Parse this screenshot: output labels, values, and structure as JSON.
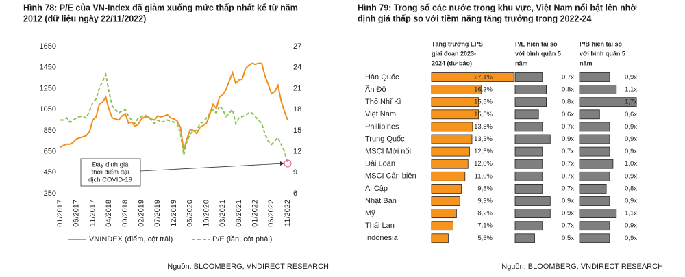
{
  "chart_data": [
    {
      "type": "line",
      "title": [
        "Hình 78: P/E của VN-Index đã giảm xuống mức thấp nhất kể từ năm",
        "2012 (dữ liệu ngày 22/11/2022)"
      ],
      "x": [
        "01/2017",
        null,
        null,
        null,
        null,
        "06/2017",
        null,
        null,
        null,
        null,
        "11/2017",
        null,
        null,
        null,
        null,
        "04/2018",
        null,
        null,
        null,
        null,
        "09/2018",
        null,
        null,
        null,
        null,
        "02/2019",
        null,
        null,
        null,
        null,
        "07/2019",
        null,
        null,
        null,
        null,
        "12/2019",
        null,
        null,
        null,
        null,
        "05/2020",
        null,
        null,
        null,
        null,
        "10/2020",
        null,
        null,
        null,
        null,
        "03/2021",
        null,
        null,
        null,
        null,
        "08/2021",
        null,
        null,
        null,
        null,
        "01/2022",
        null,
        null,
        null,
        null,
        "06/2022",
        null,
        null,
        null,
        null,
        "11/2022"
      ],
      "series": [
        {
          "name": "VNINDEX (điểm, cột trái)",
          "color": "#f28e1c",
          "axis": "y",
          "dashed": false,
          "values": [
            690,
            710,
            720,
            720,
            740,
            770,
            780,
            790,
            800,
            840,
            950,
            980,
            1100,
            1120,
            1170,
            1050,
            970,
            960,
            950,
            990,
            1010,
            920,
            930,
            890,
            910,
            960,
            980,
            980,
            960,
            950,
            990,
            980,
            990,
            1000,
            970,
            960,
            940,
            880,
            660,
            770,
            860,
            850,
            820,
            880,
            900,
            920,
            1000,
            1100,
            1060,
            1170,
            1190,
            1240,
            1320,
            1400,
            1300,
            1330,
            1340,
            1440,
            1470,
            1490,
            1480,
            1490,
            1490,
            1370,
            1290,
            1200,
            1220,
            1280,
            1130,
            1030,
            950
          ]
        },
        {
          "name": "P/E (lần, cột phải)",
          "color": "#8cc152",
          "axis": "y2",
          "dashed": true,
          "values": [
            16.5,
            16.5,
            16.8,
            16.2,
            16.5,
            16.8,
            17.0,
            17.0,
            16.8,
            17.8,
            19.0,
            19.5,
            21,
            22,
            23,
            20.5,
            18.5,
            18,
            17.5,
            17.8,
            18,
            17,
            16.5,
            16,
            16.8,
            17,
            17.2,
            17,
            16.5,
            16,
            16.5,
            16.2,
            16.3,
            16.5,
            16.3,
            16.2,
            16,
            14.5,
            11.5,
            13.5,
            14.5,
            15,
            15,
            16,
            16.2,
            16.8,
            17.5,
            18,
            17.5,
            18.5,
            18,
            17,
            17.5,
            18,
            16,
            16.8,
            17,
            17.2,
            17.5,
            17.5,
            17,
            16.5,
            16,
            14.5,
            13.5,
            13,
            13.5,
            14,
            13,
            12,
            10.3
          ]
        }
      ],
      "ylim": [
        250,
        1650
      ],
      "yticks": [
        250,
        450,
        650,
        850,
        1050,
        1250,
        1450,
        1650
      ],
      "y2lim": [
        6,
        27
      ],
      "y2ticks": [
        6,
        9,
        12,
        15,
        18,
        21,
        24,
        27
      ],
      "annotation": [
        "Đáy định giá",
        "thời điểm đại",
        "dịch COVID-19"
      ],
      "source": "Nguồn: BLOOMBERG, VNDIRECT RESEARCH"
    },
    {
      "type": "bar",
      "title": [
        "Hình 79: Trong số các nước trong khu vực, Việt Nam nổi bật lên nhờ",
        "định giá thấp so với tiềm năng tăng trưởng trong 2022-24"
      ],
      "categories": [
        "Hàn Quốc",
        "Ấn Độ",
        "Thổ Nhĩ Kì",
        "Việt Nam",
        "Phillipines",
        "Trung Quốc",
        "MSCI Mới nổi",
        "Đài Loan",
        "MSCI Cận biên",
        "Ai Cập",
        "Nhật Bản",
        "Mỹ",
        "Thái Lan",
        "Indonesia"
      ],
      "series": [
        {
          "header": [
            "Tăng trưởng EPS",
            "giai đoạn 2023-",
            "2024 (dự báo)"
          ],
          "color": "#f7941d",
          "xlim": [
            0,
            27.5
          ],
          "values": [
            27.1,
            16.3,
            15.5,
            15.5,
            13.5,
            13.3,
            12.5,
            12.0,
            11.0,
            9.8,
            9.3,
            8.2,
            7.1,
            5.5
          ],
          "value_labels": [
            "27,1%",
            "16,3%",
            "15,5%",
            "15,5%",
            "13,5%",
            "13,3%",
            "12,5%",
            "12,0%",
            "11,0%",
            "9,8%",
            "9,3%",
            "8,2%",
            "7,1%",
            "5,5%"
          ]
        },
        {
          "header": [
            "P/E hiện tại so",
            "với bình quân 5",
            "năm"
          ],
          "color": "#7f7f7f",
          "xlim": [
            0,
            1
          ],
          "values": [
            0.7,
            0.8,
            0.8,
            0.6,
            0.7,
            0.9,
            0.7,
            0.7,
            0.7,
            0.7,
            0.9,
            0.9,
            0.7,
            0.5
          ],
          "value_labels": [
            "0,7x",
            "0,8x",
            "0,8x",
            "0,6x",
            "0,7x",
            "0,9x",
            "0,7x",
            "0,7x",
            "0,7x",
            "0,7x",
            "0,9x",
            "0,9x",
            "0,7x",
            "0,5x"
          ]
        },
        {
          "header": [
            "P/B hiện tại so",
            "với bình quân 5",
            "năm"
          ],
          "color": "#7f7f7f",
          "xlim": [
            0,
            1.8
          ],
          "values": [
            0.9,
            1.1,
            1.7,
            0.6,
            0.9,
            0.9,
            0.9,
            1.0,
            0.9,
            0.8,
            0.9,
            1.1,
            0.9,
            0.9
          ],
          "value_labels": [
            "0,9x",
            "1,1x",
            "1,7x",
            "0,6x",
            "0,9x",
            "0,9x",
            "0,9x",
            "1,0x",
            "0,9x",
            "0,8x",
            "0,9x",
            "1,1x",
            "0,9x",
            "0,9x"
          ]
        }
      ],
      "source": "Nguồn: BLOOMBERG, VNDIRECT RESEARCH"
    }
  ]
}
